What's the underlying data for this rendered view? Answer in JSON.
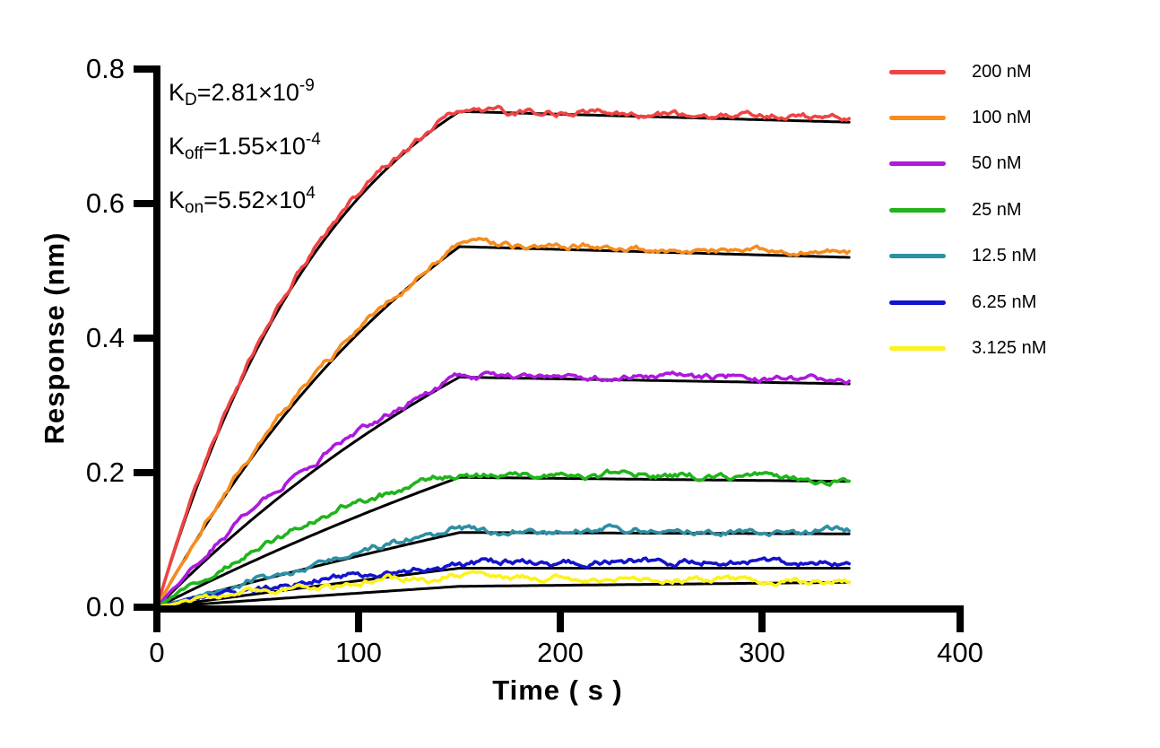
{
  "chart_data": {
    "type": "line",
    "title": "",
    "xlabel": "Time ( s )",
    "ylabel": "Response (nm)",
    "xlim": [
      0,
      400
    ],
    "ylim": [
      0,
      0.8
    ],
    "x_ticks": [
      0,
      100,
      200,
      300,
      400
    ],
    "y_ticks": [
      "0.0",
      "0.2",
      "0.4",
      "0.6",
      "0.8"
    ],
    "grid": false,
    "legend_position": "right-outside",
    "axis_color": "#000000",
    "fit_color": "#000000",
    "phases": {
      "association_start_s": 0,
      "association_end_s": 150,
      "trace_end_s": 344
    },
    "kinetics_annotation": [
      {
        "base": "K",
        "sub": "D",
        "body": "=2.81×10",
        "sup": "-9"
      },
      {
        "base": "K",
        "sub": "off",
        "body": "=1.55×10",
        "sup": "-4"
      },
      {
        "base": "K",
        "sub": "on",
        "body": "=5.52×10",
        "sup": "4"
      }
    ],
    "series": [
      {
        "name": "200 nM",
        "color": "#F04343",
        "response_peak_nm": 0.74,
        "response_end_nm": 0.727,
        "k_obs": 0.0115,
        "fit": {
          "peak": 0.737,
          "end": 0.721,
          "k": 0.011
        }
      },
      {
        "name": "100 nM",
        "color": "#F68C1F",
        "response_peak_nm": 0.54,
        "response_end_nm": 0.525,
        "k_obs": 0.0065,
        "fit": {
          "peak": 0.536,
          "end": 0.52,
          "k": 0.006
        }
      },
      {
        "name": "50 nM",
        "color": "#AE19DE",
        "response_peak_nm": 0.346,
        "response_end_nm": 0.337,
        "k_obs": 0.0055,
        "fit": {
          "peak": 0.342,
          "end": 0.332,
          "k": 0.004
        }
      },
      {
        "name": "25 nM",
        "color": "#1FB41C",
        "response_peak_nm": 0.198,
        "response_end_nm": 0.191,
        "k_obs": 0.0075,
        "fit": {
          "peak": 0.193,
          "end": 0.187,
          "k": 0.0022
        }
      },
      {
        "name": "12.5 nM",
        "color": "#2E8FA3",
        "response_peak_nm": 0.116,
        "response_end_nm": 0.112,
        "k_obs": 0.0022,
        "fit": {
          "peak": 0.111,
          "end": 0.109,
          "k": 0.0012
        }
      },
      {
        "name": "6.25 nM",
        "color": "#1414CC",
        "response_peak_nm": 0.068,
        "response_end_nm": 0.062,
        "k_obs": 0.0035,
        "fit": {
          "peak": 0.058,
          "end": 0.058,
          "k": 0.0007
        }
      },
      {
        "name": "3.125 nM",
        "color": "#FDF21C",
        "response_peak_nm": 0.046,
        "response_end_nm": 0.038,
        "k_obs": 0.009,
        "fit": {
          "peak": 0.031,
          "end": 0.037,
          "k": 0.0005
        }
      }
    ]
  }
}
